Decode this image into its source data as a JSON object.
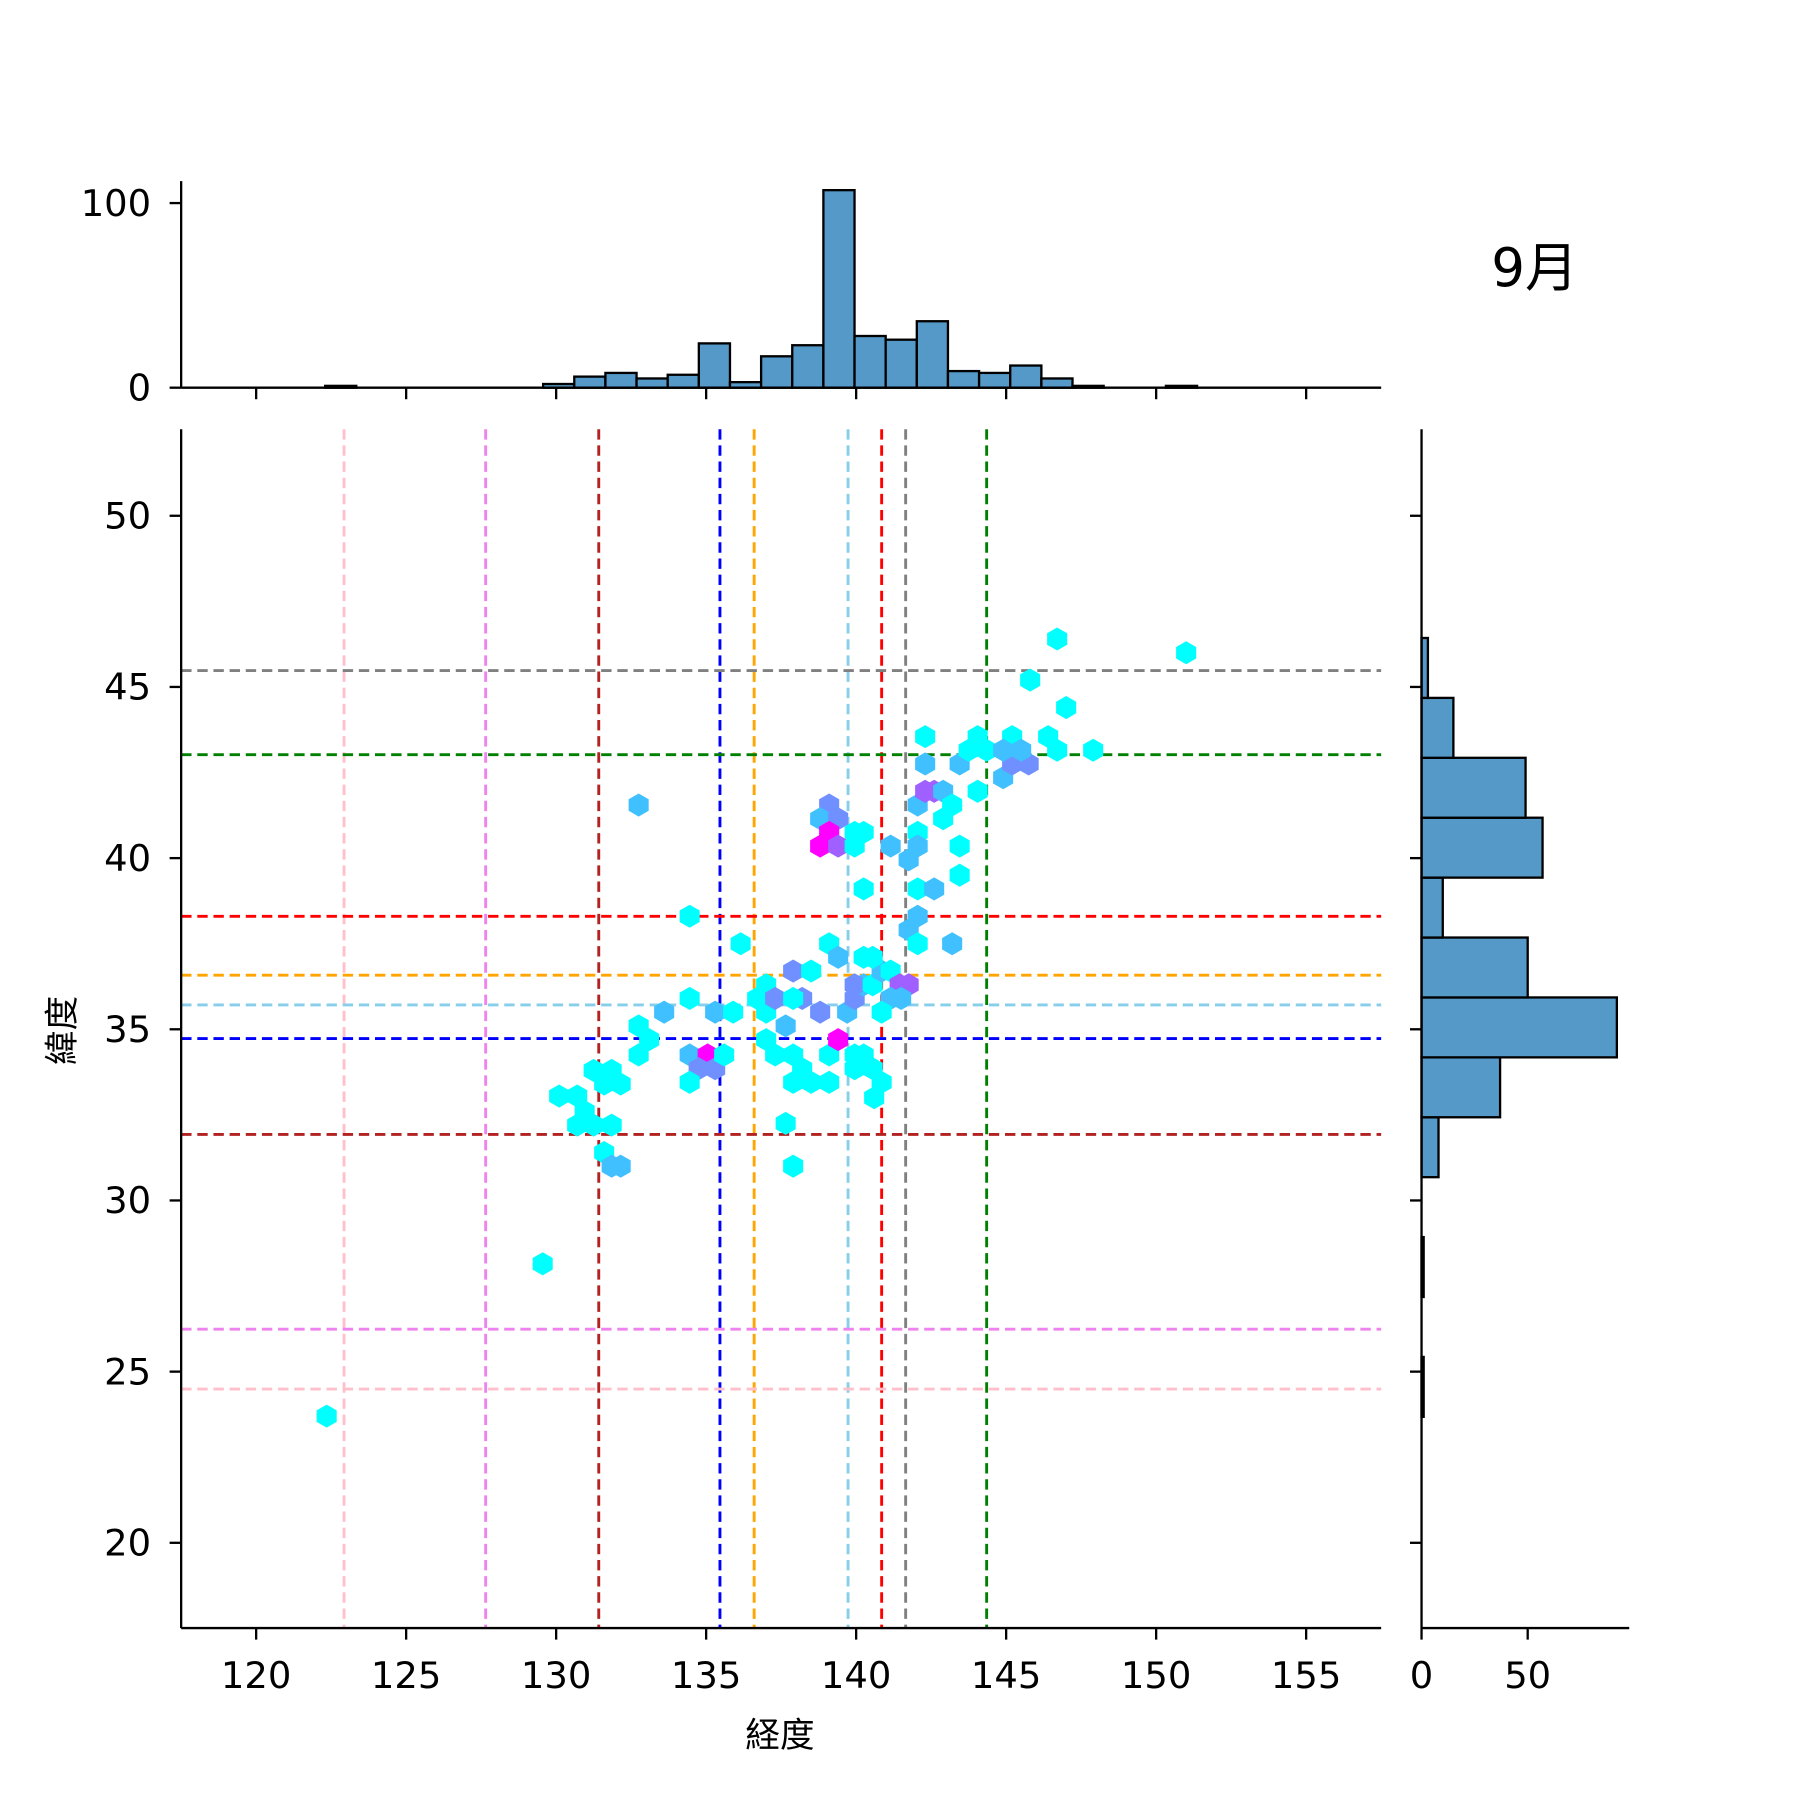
{
  "chart_data": {
    "type": "hexbin-jointplot",
    "title": "9月",
    "xlabel": "経度",
    "ylabel": "緯度",
    "xlim": [
      117.5,
      157.5
    ],
    "ylim": [
      17.5,
      52.5
    ],
    "xticks": [
      120,
      125,
      130,
      135,
      140,
      145,
      150,
      155
    ],
    "yticks": [
      20,
      25,
      30,
      35,
      40,
      45,
      50
    ],
    "colormap": [
      "#00ffff",
      "#40c0ff",
      "#7090ff",
      "#a060ff",
      "#ff00ff"
    ],
    "hexbins": [
      [
        122.35,
        23.7,
        1
      ],
      [
        129.55,
        28.15,
        1
      ],
      [
        132.75,
        41.55,
        2
      ],
      [
        134.45,
        38.3,
        1
      ],
      [
        136.15,
        37.5,
        1
      ],
      [
        133.6,
        35.5,
        2
      ],
      [
        134.45,
        35.9,
        1
      ],
      [
        132.75,
        35.1,
        1
      ],
      [
        133.1,
        34.7,
        1
      ],
      [
        132.75,
        34.25,
        1
      ],
      [
        130.1,
        33.05,
        1
      ],
      [
        130.7,
        33.05,
        1
      ],
      [
        130.95,
        32.6,
        1
      ],
      [
        130.7,
        32.2,
        1
      ],
      [
        131.25,
        32.2,
        1
      ],
      [
        131.25,
        33.8,
        1
      ],
      [
        131.85,
        33.8,
        1
      ],
      [
        131.6,
        33.4,
        1
      ],
      [
        132.15,
        33.4,
        1
      ],
      [
        131.85,
        32.2,
        1
      ],
      [
        131.6,
        31.4,
        1
      ],
      [
        131.85,
        31.0,
        2
      ],
      [
        132.15,
        31.0,
        2
      ],
      [
        134.45,
        34.25,
        2
      ],
      [
        135.05,
        34.25,
        5
      ],
      [
        134.75,
        33.85,
        3
      ],
      [
        135.3,
        33.85,
        3
      ],
      [
        135.6,
        34.25,
        1
      ],
      [
        134.45,
        33.45,
        1
      ],
      [
        135.3,
        35.5,
        2
      ],
      [
        135.9,
        35.5,
        1
      ],
      [
        137.0,
        36.3,
        1
      ],
      [
        137.0,
        35.5,
        1
      ],
      [
        136.7,
        35.9,
        1
      ],
      [
        137.3,
        35.9,
        3
      ],
      [
        137.9,
        36.7,
        3
      ],
      [
        138.5,
        36.7,
        1
      ],
      [
        139.1,
        37.5,
        1
      ],
      [
        139.4,
        37.1,
        2
      ],
      [
        138.2,
        35.9,
        3
      ],
      [
        138.8,
        35.5,
        3
      ],
      [
        137.9,
        35.9,
        1
      ],
      [
        137.65,
        35.1,
        2
      ],
      [
        137.0,
        34.7,
        1
      ],
      [
        137.3,
        34.25,
        1
      ],
      [
        137.9,
        34.25,
        1
      ],
      [
        138.2,
        33.85,
        1
      ],
      [
        137.9,
        33.45,
        1
      ],
      [
        138.5,
        33.45,
        1
      ],
      [
        139.1,
        33.45,
        1
      ],
      [
        137.65,
        32.25,
        1
      ],
      [
        137.9,
        31.0,
        1
      ],
      [
        139.1,
        34.25,
        1
      ],
      [
        139.4,
        34.7,
        5
      ],
      [
        139.95,
        34.25,
        1
      ],
      [
        139.95,
        33.85,
        1
      ],
      [
        140.25,
        34.25,
        1
      ],
      [
        140.55,
        33.85,
        1
      ],
      [
        140.6,
        33.0,
        1
      ],
      [
        140.85,
        33.45,
        1
      ],
      [
        139.7,
        35.5,
        2
      ],
      [
        139.95,
        35.9,
        3
      ],
      [
        140.25,
        36.3,
        2
      ],
      [
        139.95,
        36.3,
        3
      ],
      [
        140.55,
        36.3,
        1
      ],
      [
        140.85,
        36.7,
        2
      ],
      [
        141.15,
        36.7,
        1
      ],
      [
        141.45,
        36.3,
        4
      ],
      [
        141.75,
        36.3,
        4
      ],
      [
        140.25,
        37.1,
        1
      ],
      [
        140.55,
        37.1,
        1
      ],
      [
        141.15,
        35.9,
        2
      ],
      [
        140.85,
        35.5,
        1
      ],
      [
        141.5,
        35.9,
        2
      ],
      [
        139.1,
        41.55,
        3
      ],
      [
        138.8,
        41.15,
        2
      ],
      [
        139.4,
        41.15,
        3
      ],
      [
        138.8,
        40.35,
        5
      ],
      [
        139.1,
        40.75,
        5
      ],
      [
        139.4,
        40.35,
        4
      ],
      [
        139.95,
        40.35,
        1
      ],
      [
        139.95,
        40.75,
        1
      ],
      [
        140.25,
        40.75,
        1
      ],
      [
        140.25,
        39.1,
        1
      ],
      [
        141.15,
        40.35,
        2
      ],
      [
        142.05,
        41.55,
        2
      ],
      [
        142.05,
        40.75,
        1
      ],
      [
        142.05,
        40.35,
        2
      ],
      [
        141.75,
        39.95,
        2
      ],
      [
        142.05,
        39.1,
        1
      ],
      [
        142.6,
        39.1,
        2
      ],
      [
        142.05,
        38.3,
        2
      ],
      [
        141.75,
        37.9,
        2
      ],
      [
        142.05,
        37.5,
        1
      ],
      [
        143.2,
        37.5,
        2
      ],
      [
        142.3,
        43.55,
        1
      ],
      [
        142.3,
        42.75,
        2
      ],
      [
        142.6,
        41.95,
        4
      ],
      [
        142.3,
        41.95,
        4
      ],
      [
        142.9,
        41.95,
        2
      ],
      [
        143.2,
        41.55,
        1
      ],
      [
        142.9,
        41.15,
        1
      ],
      [
        143.45,
        42.75,
        2
      ],
      [
        144.05,
        43.55,
        1
      ],
      [
        143.75,
        43.15,
        1
      ],
      [
        144.35,
        43.15,
        1
      ],
      [
        144.9,
        42.35,
        2
      ],
      [
        145.2,
        42.75,
        3
      ],
      [
        145.2,
        43.55,
        1
      ],
      [
        145.75,
        42.75,
        3
      ],
      [
        146.4,
        43.55,
        1
      ],
      [
        146.7,
        43.15,
        1
      ],
      [
        144.9,
        43.15,
        2
      ],
      [
        145.5,
        43.15,
        2
      ],
      [
        143.45,
        40.35,
        1
      ],
      [
        143.45,
        39.5,
        1
      ],
      [
        144.05,
        41.95,
        1
      ],
      [
        146.7,
        46.4,
        1
      ],
      [
        145.8,
        45.2,
        1
      ],
      [
        147.0,
        44.4,
        1
      ],
      [
        147.9,
        43.15,
        1
      ],
      [
        151.0,
        46.0,
        1
      ]
    ],
    "reference_lines": {
      "vertical": [
        {
          "x": 122.93,
          "color": "#ffc0cb"
        },
        {
          "x": 127.65,
          "color": "#ee82ee"
        },
        {
          "x": 131.42,
          "color": "#b22222"
        },
        {
          "x": 135.46,
          "color": "#0000ff"
        },
        {
          "x": 136.6,
          "color": "#ffa500"
        },
        {
          "x": 139.73,
          "color": "#87ceeb"
        },
        {
          "x": 140.85,
          "color": "#ff0000"
        },
        {
          "x": 141.65,
          "color": "#808080"
        },
        {
          "x": 144.35,
          "color": "#008000"
        }
      ],
      "horizontal": [
        {
          "y": 45.48,
          "color": "#808080"
        },
        {
          "y": 43.02,
          "color": "#008000"
        },
        {
          "y": 38.3,
          "color": "#ff0000"
        },
        {
          "y": 36.58,
          "color": "#ffa500"
        },
        {
          "y": 35.71,
          "color": "#87ceeb"
        },
        {
          "y": 34.73,
          "color": "#0000ff"
        },
        {
          "y": 31.93,
          "color": "#b22222"
        },
        {
          "y": 26.24,
          "color": "#ee82ee"
        },
        {
          "y": 24.49,
          "color": "#ffc0cb"
        }
      ]
    },
    "marginal_x": {
      "type": "bar",
      "bin_start": 122.3,
      "bin_width": 1.038,
      "counts": [
        1,
        0,
        0,
        0,
        0,
        0,
        0,
        2,
        6,
        8,
        5,
        7,
        24,
        3,
        17,
        23,
        107,
        28,
        26,
        36,
        9,
        8,
        12,
        5,
        1,
        0,
        0,
        1
      ],
      "ylim": [
        0,
        112
      ],
      "yticks": [
        0,
        100
      ]
    },
    "marginal_y": {
      "type": "bar",
      "bin_start": 23.68,
      "bin_width": 1.75,
      "counts": [
        1,
        0,
        1,
        0,
        8,
        37,
        92,
        50,
        10,
        57,
        49,
        15,
        3
      ],
      "xlim": [
        0,
        97
      ],
      "xticks": [
        0,
        50
      ]
    },
    "bar_color": "#5499c7"
  }
}
